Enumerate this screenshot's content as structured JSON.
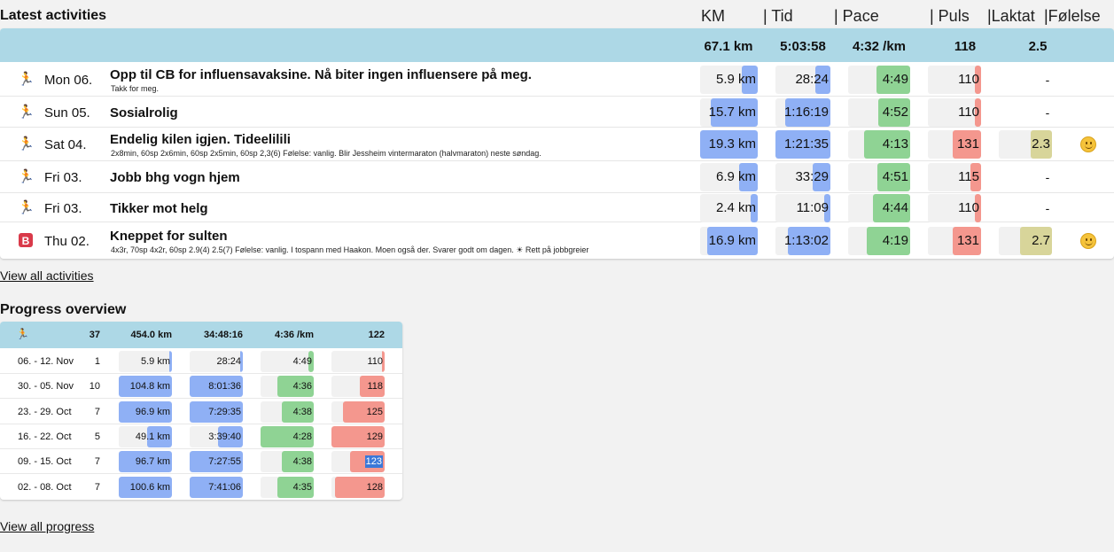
{
  "colors": {
    "header_bg": "#add8e6",
    "km": "#8fb0f5",
    "time": "#8fb0f5",
    "pace": "#8fd394",
    "pulse": "#f4978e",
    "lactate": "#d8d59a"
  },
  "latest": {
    "title": "Latest activities",
    "columns": {
      "km": "KM",
      "time": "| Tid",
      "pace": "| Pace",
      "pulse": "| Puls",
      "lactate": "|Laktat",
      "feeling": "|Følelse"
    },
    "summary": {
      "km": "67.1 km",
      "time": "5:03:58",
      "pace": "4:32 /km",
      "pulse": "118",
      "lactate": "2.5"
    },
    "rows": [
      {
        "icon": "runner-icon",
        "day": "Mon 06.",
        "title": "Opp til CB for influensavaksine. Nå biter ingen influensere på meg.",
        "desc": "Takk for meg.",
        "km": "5.9 km",
        "km_frac": 0.27,
        "time": "28:24",
        "time_frac": 0.28,
        "pace": "4:49",
        "pace_frac": 0.55,
        "pulse": "110",
        "pulse_frac": 0.12,
        "lactate": "-",
        "lactate_frac": 0,
        "feeling": ""
      },
      {
        "icon": "runner-icon",
        "day": "Sun 05.",
        "title": "Sosialrolig",
        "desc": "",
        "km": "15.7 km",
        "km_frac": 0.82,
        "time": "1:16:19",
        "time_frac": 0.82,
        "pace": "4:52",
        "pace_frac": 0.52,
        "pulse": "110",
        "pulse_frac": 0.12,
        "lactate": "-",
        "lactate_frac": 0,
        "feeling": ""
      },
      {
        "icon": "runner-icon",
        "day": "Sat 04.",
        "title": "Endelig kilen igjen. Tideelilili",
        "desc": "2x8min, 60sp 2x6min, 60sp 2x5min, 60sp 2,3(6) Følelse: vanlig. Blir Jessheim vintermaraton (halvmaraton) neste søndag.",
        "km": "19.3 km",
        "km_frac": 1.0,
        "time": "1:21:35",
        "time_frac": 1.0,
        "pace": "4:13",
        "pace_frac": 0.75,
        "pulse": "131",
        "pulse_frac": 0.53,
        "lactate": "2.3",
        "lactate_frac": 0.4,
        "feeling": "smiley"
      },
      {
        "icon": "runner-icon",
        "day": "Fri 03.",
        "title": "Jobb bhg vogn hjem",
        "desc": "",
        "km": "6.9 km",
        "km_frac": 0.33,
        "time": "33:29",
        "time_frac": 0.33,
        "pace": "4:51",
        "pace_frac": 0.53,
        "pulse": "115",
        "pulse_frac": 0.2,
        "lactate": "-",
        "lactate_frac": 0,
        "feeling": ""
      },
      {
        "icon": "runner-icon",
        "day": "Fri 03.",
        "title": "Tikker mot helg",
        "desc": "",
        "km": "2.4 km",
        "km_frac": 0.12,
        "time": "11:09",
        "time_frac": 0.12,
        "pace": "4:44",
        "pace_frac": 0.6,
        "pulse": "110",
        "pulse_frac": 0.12,
        "lactate": "-",
        "lactate_frac": 0,
        "feeling": ""
      },
      {
        "icon": "bike-icon",
        "icon_text": "B",
        "day": "Thu 02.",
        "title": "Kneppet for sulten",
        "desc": "4x3r, 70sp 4x2r, 60sp 2.9(4) 2.5(7) Følelse: vanlig. I tospann med Haakon. Moen også der. Svarer godt om dagen. ☀ Rett på jobbgreier",
        "km": "16.9 km",
        "km_frac": 0.88,
        "time": "1:13:02",
        "time_frac": 0.78,
        "pace": "4:19",
        "pace_frac": 0.7,
        "pulse": "131",
        "pulse_frac": 0.53,
        "lactate": "2.7",
        "lactate_frac": 0.6,
        "feeling": "smiley"
      }
    ],
    "view_all": "View all activities"
  },
  "progress": {
    "title": "Progress overview",
    "header": {
      "icon": "runner-icon",
      "count": "37",
      "km": "454.0 km",
      "time": "34:48:16",
      "pace": "4:36 /km",
      "pulse": "122"
    },
    "rows": [
      {
        "week": "06. - 12. Nov",
        "count": "1",
        "km": "5.9 km",
        "km_frac": 0.05,
        "time": "28:24",
        "time_frac": 0.05,
        "pace": "4:49",
        "pace_frac": 0.1,
        "pulse": "110",
        "pulse_frac": 0.05
      },
      {
        "week": "30. - 05. Nov",
        "count": "10",
        "km": "104.8 km",
        "km_frac": 1.0,
        "time": "8:01:36",
        "time_frac": 1.0,
        "pace": "4:36",
        "pace_frac": 0.68,
        "pulse": "118",
        "pulse_frac": 0.47
      },
      {
        "week": "23. - 29. Oct",
        "count": "7",
        "km": "96.9 km",
        "km_frac": 1.0,
        "time": "7:29:35",
        "time_frac": 1.0,
        "pace": "4:38",
        "pace_frac": 0.6,
        "pulse": "125",
        "pulse_frac": 0.78
      },
      {
        "week": "16. - 22. Oct",
        "count": "5",
        "km": "49.1 km",
        "km_frac": 0.47,
        "time": "3:39:40",
        "time_frac": 0.47,
        "pace": "4:28",
        "pace_frac": 1.0,
        "pulse": "129",
        "pulse_frac": 1.0
      },
      {
        "week": "09. - 15. Oct",
        "count": "7",
        "km": "96.7 km",
        "km_frac": 1.0,
        "time": "7:27:55",
        "time_frac": 1.0,
        "pace": "4:38",
        "pace_frac": 0.6,
        "pulse": "123",
        "pulse_frac": 0.65
      },
      {
        "week": "02. - 08. Oct",
        "count": "7",
        "km": "100.6 km",
        "km_frac": 1.0,
        "time": "7:41:06",
        "time_frac": 1.0,
        "pace": "4:35",
        "pace_frac": 0.68,
        "pulse": "128",
        "pulse_frac": 0.93
      }
    ],
    "view_all": "View all progress"
  }
}
